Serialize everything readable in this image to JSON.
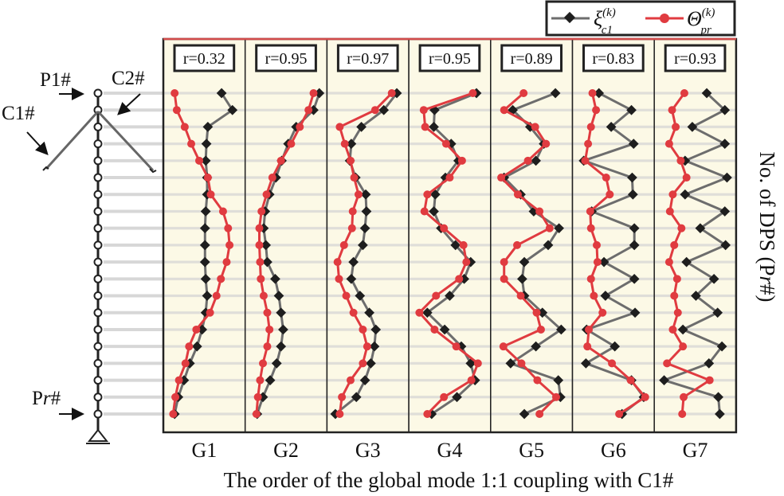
{
  "chart_data": {
    "type": "line",
    "xlabel": "The order of the global mode 1:1 coupling with C1#",
    "ylabel": "No. of DPS (Pr#)",
    "panels": [
      {
        "label": "G1",
        "r": "r=0.32",
        "series": [
          {
            "name": "xi",
            "values": [
              0.74,
              0.89,
              0.55,
              0.53,
              0.52,
              0.54,
              0.54,
              0.52,
              0.51,
              0.51,
              0.51,
              0.52,
              0.54,
              0.52,
              0.47,
              0.4,
              0.3,
              0.22,
              0.14,
              0.09
            ]
          },
          {
            "name": "theta",
            "values": [
              0.09,
              0.12,
              0.23,
              0.32,
              0.43,
              0.55,
              0.59,
              0.76,
              0.83,
              0.85,
              0.81,
              0.73,
              0.67,
              0.58,
              0.39,
              0.29,
              0.24,
              0.15,
              0.1,
              0.07
            ]
          }
        ]
      },
      {
        "label": "G2",
        "r": "r=0.95",
        "series": [
          {
            "name": "xi",
            "values": [
              0.96,
              0.88,
              0.64,
              0.53,
              0.44,
              0.36,
              0.27,
              0.21,
              0.19,
              0.22,
              0.24,
              0.35,
              0.4,
              0.43,
              0.46,
              0.43,
              0.37,
              0.28,
              0.18,
              0.1
            ]
          },
          {
            "name": "theta",
            "values": [
              0.88,
              0.81,
              0.69,
              0.57,
              0.43,
              0.31,
              0.23,
              0.16,
              0.13,
              0.13,
              0.14,
              0.15,
              0.19,
              0.24,
              0.27,
              0.24,
              0.18,
              0.14,
              0.11,
              0.09
            ]
          }
        ]
      },
      {
        "label": "G3",
        "r": "r=0.97",
        "series": [
          {
            "name": "xi",
            "values": [
              0.9,
              0.72,
              0.41,
              0.27,
              0.25,
              0.33,
              0.47,
              0.48,
              0.46,
              0.43,
              0.3,
              0.27,
              0.39,
              0.52,
              0.61,
              0.59,
              0.54,
              0.46,
              0.34,
              0.05
            ]
          },
          {
            "name": "theta",
            "values": [
              0.83,
              0.6,
              0.11,
              0.18,
              0.26,
              0.31,
              0.37,
              0.29,
              0.28,
              0.17,
              0.08,
              0.1,
              0.2,
              0.3,
              0.43,
              0.49,
              0.43,
              0.26,
              0.14,
              0.11
            ]
          }
        ]
      },
      {
        "label": "G4",
        "r": "r=0.95",
        "series": [
          {
            "name": "xi",
            "values": [
              0.87,
              0.29,
              0.28,
              0.52,
              0.62,
              0.44,
              0.3,
              0.28,
              0.38,
              0.58,
              0.79,
              0.7,
              0.5,
              0.19,
              0.43,
              0.66,
              0.79,
              0.85,
              0.6,
              0.25
            ]
          },
          {
            "name": "theta",
            "values": [
              0.82,
              0.14,
              0.16,
              0.45,
              0.67,
              0.5,
              0.19,
              0.15,
              0.42,
              0.69,
              0.73,
              0.63,
              0.31,
              0.08,
              0.29,
              0.59,
              0.89,
              0.8,
              0.42,
              0.19
            ]
          }
        ]
      },
      {
        "label": "G5",
        "r": "r=0.89",
        "series": [
          {
            "name": "xi",
            "values": [
              0.83,
              0.24,
              0.48,
              0.67,
              0.56,
              0.12,
              0.35,
              0.53,
              0.88,
              0.73,
              0.4,
              0.37,
              0.4,
              0.65,
              0.91,
              0.56,
              0.21,
              0.87,
              0.9,
              0.4
            ]
          },
          {
            "name": "theta",
            "values": [
              0.39,
              0.12,
              0.55,
              0.7,
              0.45,
              0.08,
              0.31,
              0.61,
              0.75,
              0.3,
              0.12,
              0.12,
              0.35,
              0.57,
              0.63,
              0.11,
              0.36,
              0.58,
              0.84,
              0.61
            ]
          }
        ]
      },
      {
        "label": "G6",
        "r": "r=0.83",
        "series": [
          {
            "name": "xi",
            "values": [
              0.3,
              0.75,
              0.47,
              0.78,
              0.09,
              0.76,
              0.77,
              0.2,
              0.79,
              0.79,
              0.37,
              0.79,
              0.39,
              0.8,
              0.13,
              0.52,
              0.12,
              0.75,
              0.92,
              0.62
            ]
          },
          {
            "name": "theta",
            "values": [
              0.21,
              0.26,
              0.19,
              0.15,
              0.11,
              0.4,
              0.45,
              0.18,
              0.19,
              0.27,
              0.28,
              0.19,
              0.23,
              0.35,
              0.16,
              0.14,
              0.48,
              0.74,
              0.94,
              0.58
            ]
          }
        ]
      },
      {
        "label": "G7",
        "r": "r=0.93",
        "series": [
          {
            "name": "xi",
            "values": [
              0.66,
              0.91,
              0.46,
              0.91,
              0.36,
              0.94,
              0.36,
              0.91,
              0.57,
              0.92,
              0.38,
              0.76,
              0.51,
              0.81,
              0.33,
              0.87,
              0.69,
              0.07,
              0.82,
              0.84
            ]
          },
          {
            "name": "theta",
            "values": [
              0.35,
              0.18,
              0.23,
              0.14,
              0.3,
              0.38,
              0.19,
              0.15,
              0.31,
              0.21,
              0.14,
              0.25,
              0.21,
              0.26,
              0.19,
              0.33,
              0.11,
              0.7,
              0.34,
              0.32
            ]
          }
        ]
      }
    ]
  },
  "diagram": {
    "p1": "P1#",
    "c1": "C1#",
    "c2": "C2#",
    "pr": "Pr#"
  },
  "colors": {
    "xi": "#6d6d6d",
    "xi_marker": "#1e1e1e",
    "theta": "#e03b40",
    "panel_bg": "#fbf8e2",
    "panel_border": "#d34b4b",
    "stripe": "#d7d7d7"
  }
}
